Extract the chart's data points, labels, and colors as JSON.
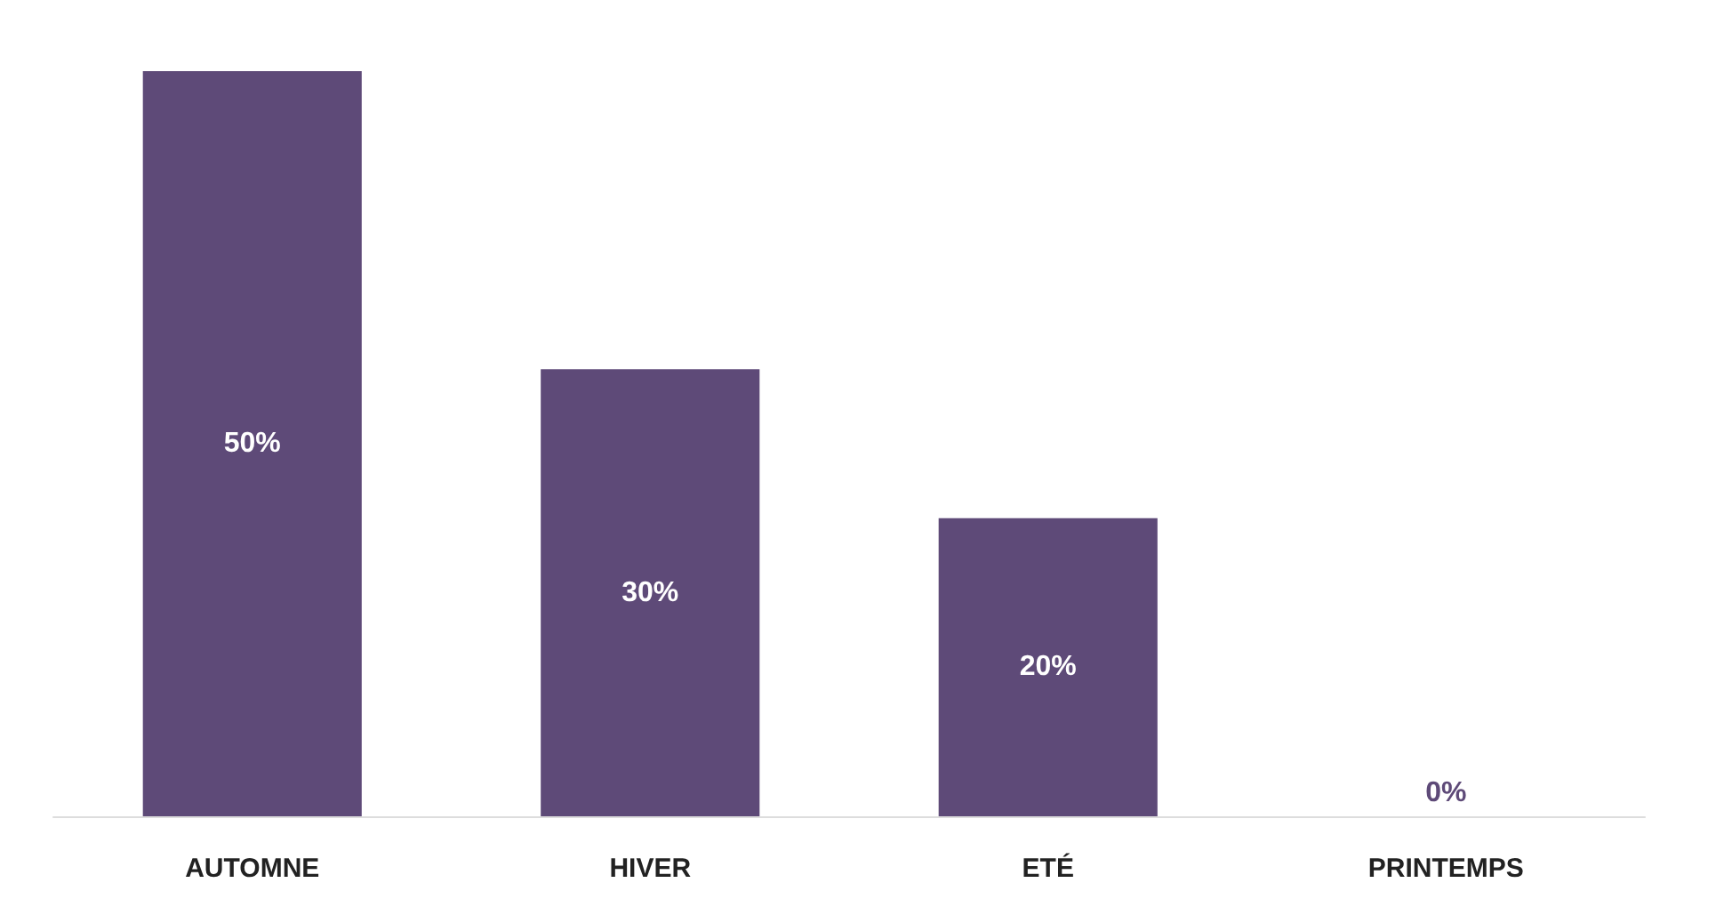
{
  "chart_data": {
    "type": "bar",
    "categories": [
      "AUTOMNE",
      "HIVER",
      "ETÉ",
      "PRINTEMPS"
    ],
    "values": [
      50,
      30,
      20,
      0
    ],
    "value_labels": [
      "50%",
      "30%",
      "20%",
      "0%"
    ],
    "color": "#5e4a78",
    "grid": false
  }
}
